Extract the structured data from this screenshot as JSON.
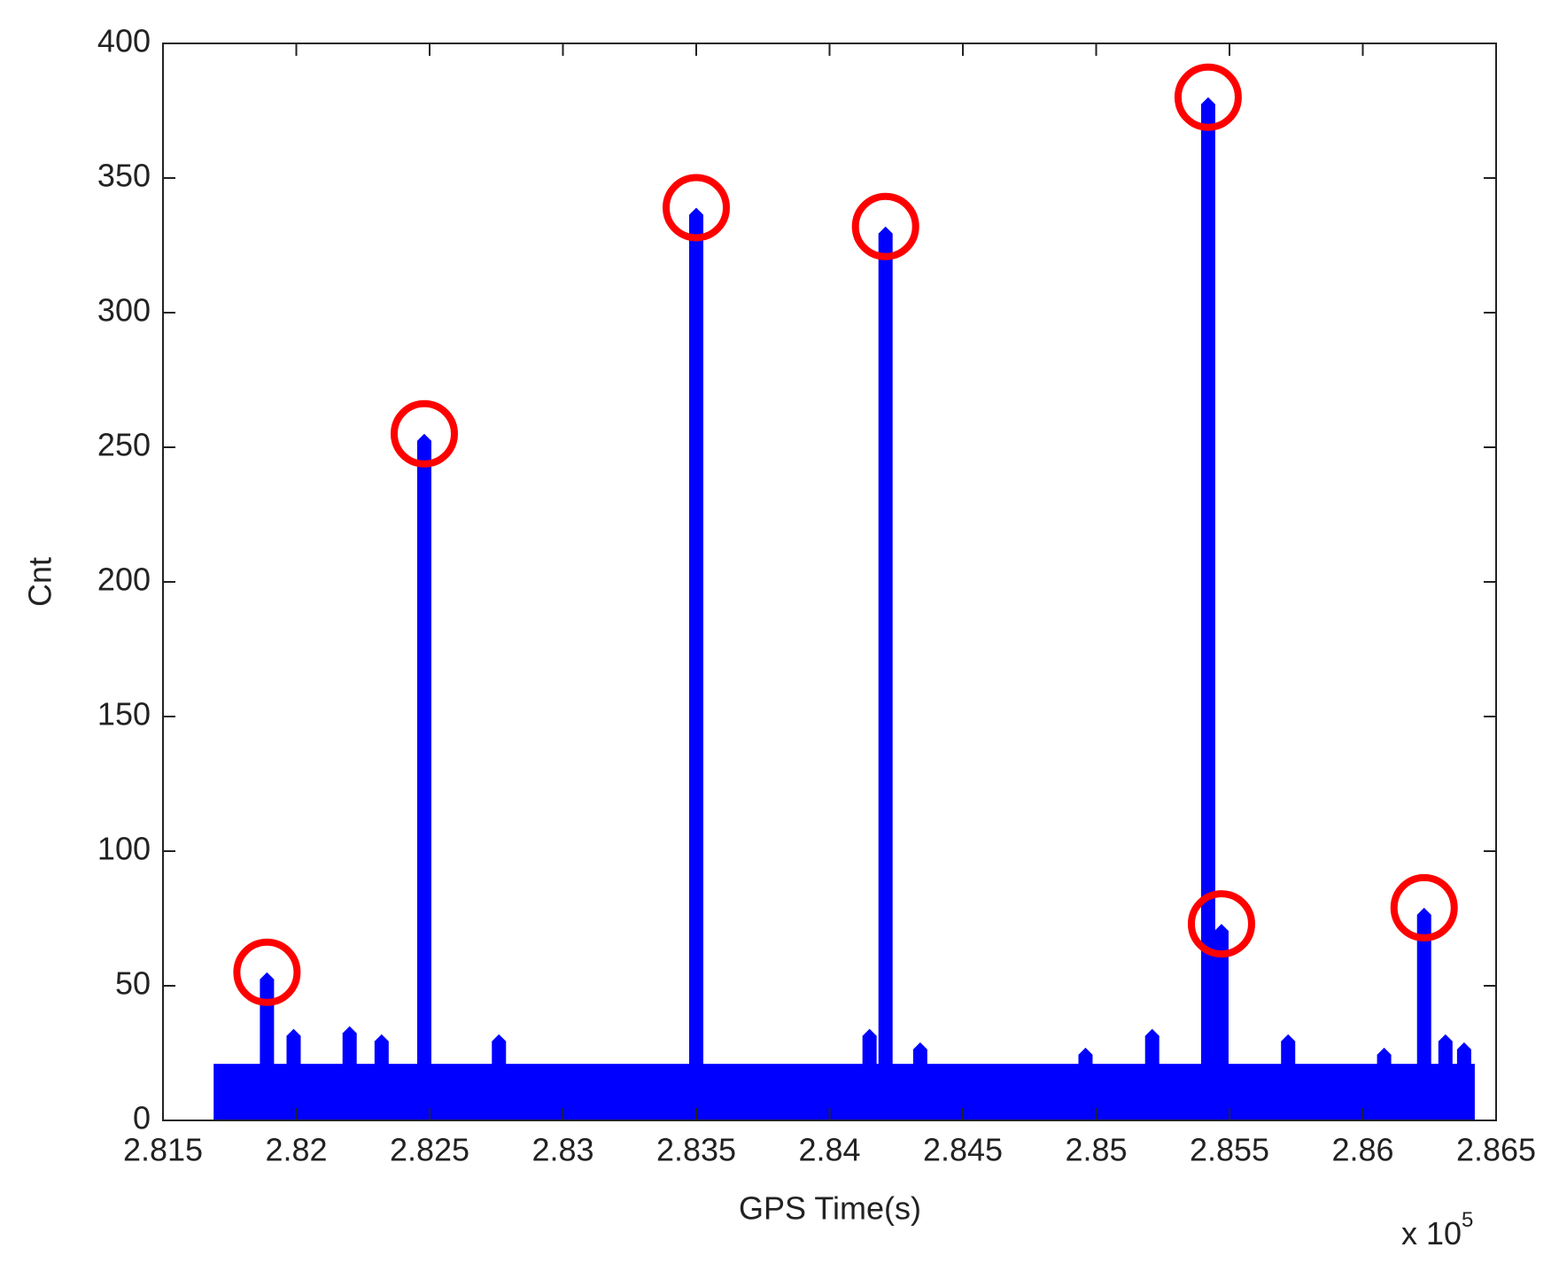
{
  "chart_data": {
    "type": "spike",
    "x_label": "GPS Time(s)",
    "y_label": "Cnt",
    "x_multiplier": {
      "base": "x 10",
      "exponent": "5"
    },
    "x": [
      2.8189,
      2.8199,
      2.822,
      2.8232,
      2.8248,
      2.8276,
      2.835,
      2.8415,
      2.8421,
      2.8434,
      2.8496,
      2.8521,
      2.8542,
      2.8547,
      2.8572,
      2.8608,
      2.8623,
      2.8631,
      2.8638
    ],
    "values": [
      55,
      34,
      35,
      32,
      255,
      32,
      339,
      34,
      332,
      29,
      27,
      34,
      380,
      73,
      32,
      27,
      79,
      32,
      29
    ],
    "baseline": {
      "x": [
        2.8169,
        2.8642
      ],
      "level": 21
    },
    "color": "#0000ff",
    "highlight_color": "#ff0000",
    "highlighted": [
      0,
      4,
      6,
      8,
      12,
      13,
      16
    ],
    "xlim": [
      2.815,
      2.865
    ],
    "xticks": [
      2.815,
      2.82,
      2.825,
      2.83,
      2.835,
      2.84,
      2.845,
      2.85,
      2.855,
      2.86,
      2.865
    ],
    "ylim": [
      0,
      400
    ],
    "yticks": [
      0,
      50,
      100,
      150,
      200,
      250,
      300,
      350,
      400
    ]
  }
}
